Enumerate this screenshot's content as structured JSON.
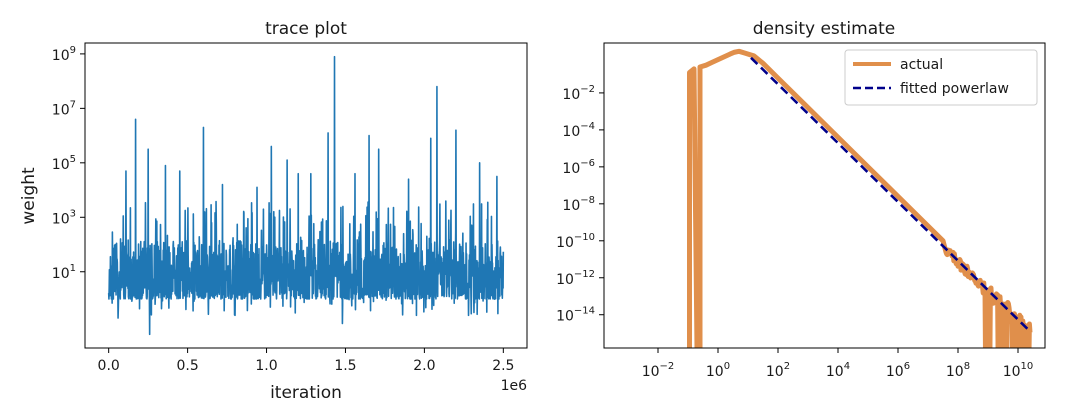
{
  "chart_data": [
    {
      "type": "line",
      "title": "trace plot",
      "xlabel": "iteration",
      "ylabel": "weight",
      "x_scale_label": "1e6",
      "x_range": [
        0,
        2500000
      ],
      "xlim": [
        -150000,
        2650000
      ],
      "y_scale": "log",
      "ylim_log10": [
        -1.8,
        9.4
      ],
      "x_ticks": [
        0,
        500000,
        1000000,
        1500000,
        2000000,
        2500000
      ],
      "x_tick_labels": [
        "0.0",
        "0.5",
        "1.0",
        "1.5",
        "2.0",
        "2.5"
      ],
      "y_ticks_log10": [
        1,
        3,
        5,
        7,
        9
      ],
      "y_tick_bases": [
        "10",
        "10",
        "10",
        "10",
        "10"
      ],
      "y_tick_exps": [
        "1",
        "3",
        "5",
        "7",
        "9"
      ],
      "series": [
        {
          "color": "#1f77b4",
          "band_log10": [
            0.0,
            2.0
          ],
          "spikes": [
            {
              "x": 170000,
              "log10": 6.6
            },
            {
              "x": 1430000,
              "log10": 8.9
            },
            {
              "x": 2080000,
              "log10": 7.8
            },
            {
              "x": 600000,
              "log10": 6.3
            },
            {
              "x": 1390000,
              "log10": 6.1
            },
            {
              "x": 1650000,
              "log10": 6.0
            },
            {
              "x": 2200000,
              "log10": 6.2
            },
            {
              "x": 2040000,
              "log10": 5.9
            },
            {
              "x": 1030000,
              "log10": 5.6
            },
            {
              "x": 250000,
              "log10": 5.5
            },
            {
              "x": 1710000,
              "log10": 5.5
            },
            {
              "x": 110000,
              "log10": 4.7
            },
            {
              "x": 360000,
              "log10": 4.9
            },
            {
              "x": 450000,
              "log10": 4.7
            },
            {
              "x": 800000,
              "log10": 4.7
            },
            {
              "x": 1130000,
              "log10": 5.1
            },
            {
              "x": 1280000,
              "log10": 4.6
            },
            {
              "x": 2350000,
              "log10": 5.0
            },
            {
              "x": 1900000,
              "log10": 4.4
            },
            {
              "x": 1560000,
              "log10": 4.6
            },
            {
              "x": 720000,
              "log10": 4.2
            },
            {
              "x": 2460000,
              "log10": 4.5
            },
            {
              "x": 940000,
              "log10": 4.1
            },
            {
              "x": 1200000,
              "log10": 4.6
            }
          ],
          "dips": [
            {
              "x": 260000,
              "log10": -1.3
            },
            {
              "x": 60000,
              "log10": -0.7
            },
            {
              "x": 800000,
              "log10": -0.6
            },
            {
              "x": 1480000,
              "log10": -0.9
            },
            {
              "x": 1950000,
              "log10": -0.6
            },
            {
              "x": 2280000,
              "log10": -0.6
            }
          ]
        }
      ]
    },
    {
      "type": "line",
      "title": "density estimate",
      "x_scale": "log",
      "y_scale": "log",
      "xlim_log10": [
        -3.8,
        10.9
      ],
      "ylim_log10": [
        -15.8,
        0.7
      ],
      "x_ticks_log10": [
        -2,
        0,
        2,
        4,
        6,
        8,
        10
      ],
      "x_tick_bases": [
        "10",
        "10",
        "10",
        "10",
        "10",
        "10",
        "10"
      ],
      "x_tick_exps": [
        "−2",
        "0",
        "2",
        "4",
        "6",
        "8",
        "10"
      ],
      "y_ticks_log10": [
        -2,
        -4,
        -6,
        -8,
        -10,
        -12,
        -14
      ],
      "y_tick_bases": [
        "10",
        "10",
        "10",
        "10",
        "10",
        "10",
        "10"
      ],
      "y_tick_exps": [
        "−2",
        "−4",
        "−6",
        "−8",
        "−10",
        "−12",
        "−14"
      ],
      "legend": {
        "position": "upper right",
        "items": [
          {
            "label": "actual",
            "color": "#e08f4b",
            "style": "solid"
          },
          {
            "label": "fitted powerlaw",
            "color": "#00008b",
            "style": "dashed"
          }
        ]
      },
      "series": [
        {
          "name": "actual",
          "color": "#e08f4b",
          "points_log10": [
            [
              -0.95,
              -15.8
            ],
            [
              -0.95,
              -0.9
            ],
            [
              -0.8,
              -0.7
            ],
            [
              -0.7,
              -15.8
            ],
            [
              -0.6,
              -15.8
            ],
            [
              -0.6,
              -0.6
            ],
            [
              -0.4,
              -0.5
            ],
            [
              -0.2,
              -0.35
            ],
            [
              0.0,
              -0.2
            ],
            [
              0.2,
              -0.05
            ],
            [
              0.4,
              0.1
            ],
            [
              0.55,
              0.2
            ],
            [
              0.7,
              0.25
            ],
            [
              0.9,
              0.15
            ],
            [
              1.2,
              0.0
            ],
            [
              1.5,
              -0.4
            ],
            [
              2.0,
              -1.2
            ],
            [
              3.0,
              -2.8
            ],
            [
              4.0,
              -4.4
            ],
            [
              5.0,
              -6.0
            ],
            [
              6.0,
              -7.6
            ],
            [
              7.0,
              -9.2
            ],
            [
              7.5,
              -10.0
            ],
            [
              8.0,
              -10.8
            ],
            [
              8.3,
              -11.3
            ],
            [
              8.6,
              -11.8
            ],
            [
              8.9,
              -12.3
            ],
            [
              9.2,
              -12.8
            ],
            [
              9.5,
              -13.3
            ],
            [
              9.8,
              -13.8
            ],
            [
              10.1,
              -14.3
            ],
            [
              10.4,
              -14.9
            ]
          ],
          "noise_from_log10": 7.6,
          "noise_amp_log10": 0.5,
          "drop_range_log10": [
            8.75,
            10.45
          ]
        },
        {
          "name": "fitted powerlaw",
          "color": "#00008b",
          "points_log10": [
            [
              1.1,
              -0.1
            ],
            [
              10.4,
              -14.9
            ]
          ]
        }
      ]
    }
  ]
}
